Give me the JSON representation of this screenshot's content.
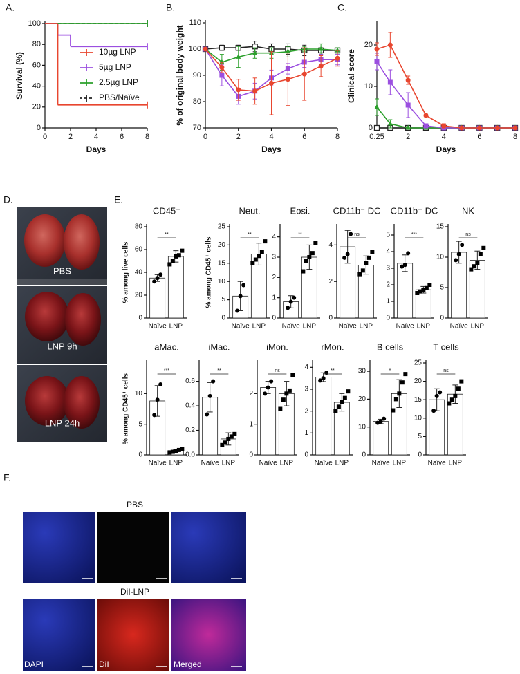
{
  "chart_data": [
    {
      "type": "step",
      "panel": "A.",
      "ylabel": "Survival (%)",
      "xlabel": "Days",
      "x": [
        0,
        1,
        2,
        8
      ],
      "xlim": [
        0,
        8
      ],
      "xticks": [
        0,
        2,
        4,
        6,
        8
      ],
      "ylim": [
        0,
        100
      ],
      "yticks": [
        0,
        20,
        40,
        60,
        80,
        100
      ],
      "legend": "upper right",
      "series": [
        {
          "name": "10µg LNP",
          "color": "#e8462f",
          "values": [
            100,
            22,
            22,
            22
          ]
        },
        {
          "name": "5µg LNP",
          "color": "#9b4fe0",
          "values": [
            100,
            89,
            78,
            78
          ]
        },
        {
          "name": "2.5µg LNP",
          "color": "#2ca02c",
          "values": [
            100,
            100,
            100,
            100
          ]
        },
        {
          "name": "PBS/Naïve",
          "color": "#222222",
          "dashed": true,
          "values": [
            100,
            100,
            100,
            100
          ]
        }
      ]
    },
    {
      "type": "line",
      "panel": "B.",
      "ylabel": "% of original body weight",
      "xlabel": "Days",
      "x": [
        0,
        1,
        2,
        3,
        4,
        5,
        6,
        7,
        8
      ],
      "xlim": [
        0,
        8
      ],
      "xticks": [
        0,
        2,
        4,
        6,
        8
      ],
      "ylim": [
        70,
        110
      ],
      "yticks": [
        70,
        80,
        90,
        100,
        110
      ],
      "series": [
        {
          "color": "#222222",
          "marker": "open-square",
          "values": [
            100,
            100.5,
            100.5,
            101,
            100,
            100,
            99.5,
            99.5,
            99.5
          ],
          "errors": [
            0,
            1,
            1,
            2,
            2,
            2,
            2,
            1,
            1
          ]
        },
        {
          "color": "#2ca02c",
          "marker": "triangle",
          "values": [
            100,
            95,
            97,
            98.5,
            98.5,
            99,
            100,
            100,
            99.5
          ],
          "errors": [
            0,
            3,
            4,
            2,
            2,
            2,
            1,
            2,
            1
          ]
        },
        {
          "color": "#9b4fe0",
          "marker": "square",
          "values": [
            100,
            90,
            82,
            84,
            89,
            92.5,
            95,
            96,
            96
          ],
          "errors": [
            0,
            4,
            3,
            3,
            3,
            2,
            2,
            2,
            2
          ]
        },
        {
          "color": "#e8462f",
          "marker": "circle",
          "values": [
            100,
            93,
            84.5,
            84,
            87,
            88.5,
            90.5,
            93.5,
            96.5
          ],
          "errors": [
            0,
            2,
            4,
            5,
            12,
            10,
            10,
            4,
            3
          ]
        }
      ]
    },
    {
      "type": "line",
      "panel": "C.",
      "ylabel": "Clinical score",
      "xlabel": "Days",
      "x": [
        0.25,
        1,
        2,
        3,
        4,
        5,
        6,
        7,
        8
      ],
      "xlim": [
        0.25,
        8
      ],
      "xticks": [
        0.25,
        2,
        4,
        6,
        8
      ],
      "ylim": [
        0,
        25
      ],
      "yticks": [
        0,
        10,
        20
      ],
      "series": [
        {
          "color": "#222222",
          "marker": "open-square",
          "values": [
            0,
            0,
            0,
            0,
            0,
            0,
            0,
            0,
            0
          ],
          "errors": [
            0,
            0,
            0,
            0,
            0,
            0,
            0,
            0,
            0
          ]
        },
        {
          "color": "#2ca02c",
          "marker": "triangle",
          "values": [
            5,
            1,
            0,
            0,
            0,
            0,
            0,
            0,
            0
          ],
          "errors": [
            2,
            1,
            0,
            0,
            0,
            0,
            0,
            0,
            0
          ]
        },
        {
          "color": "#9b4fe0",
          "marker": "square",
          "values": [
            16,
            11,
            5.5,
            0.5,
            0,
            0,
            0,
            0,
            0
          ],
          "errors": [
            2,
            3,
            3,
            0.5,
            0,
            0,
            0,
            0,
            0
          ]
        },
        {
          "color": "#e8462f",
          "marker": "circle",
          "values": [
            19,
            20,
            11.5,
            3,
            0.5,
            0,
            0,
            0,
            0
          ],
          "errors": [
            1.5,
            3,
            1,
            0.3,
            0.5,
            0,
            0,
            0,
            0
          ]
        }
      ]
    },
    {
      "type": "bar",
      "panel": "E.",
      "title": "CD45⁺",
      "ylabel": "% among live cells",
      "categories": [
        "Naïve",
        "LNP"
      ],
      "values": [
        35,
        54
      ],
      "errors": [
        3,
        5
      ],
      "points": [
        [
          32,
          35,
          38
        ],
        [
          47,
          50,
          54,
          55,
          59
        ]
      ],
      "significance": "**",
      "ylim": [
        0,
        80
      ],
      "yticks": [
        0,
        20,
        40,
        60,
        80
      ]
    },
    {
      "type": "bar",
      "title": "Neut.",
      "ylabel": "% among CD45⁺ cells",
      "categories": [
        "Naïve",
        "LNP"
      ],
      "values": [
        6,
        17.5
      ],
      "errors": [
        4,
        3
      ],
      "points": [
        [
          2,
          6,
          9
        ],
        [
          15,
          16,
          17,
          18,
          21
        ]
      ],
      "significance": "**",
      "ylim": [
        0,
        25
      ],
      "yticks": [
        0,
        5,
        10,
        15,
        20,
        25
      ]
    },
    {
      "type": "bar",
      "title": "Eosi.",
      "categories": [
        "Naïve",
        "LNP"
      ],
      "values": [
        0.8,
        3
      ],
      "errors": [
        0.3,
        0.6
      ],
      "points": [
        [
          0.5,
          0.8,
          1
        ],
        [
          2.3,
          2.8,
          3,
          3.2,
          3.7
        ]
      ],
      "significance": "**",
      "ylim": [
        0,
        4.5
      ],
      "yticks": [
        0,
        1,
        2,
        3,
        4
      ]
    },
    {
      "type": "bar",
      "title": "CD11b⁻ DC",
      "categories": [
        "Naïve",
        "LNP"
      ],
      "values": [
        3.9,
        2.9
      ],
      "errors": [
        0.9,
        0.5
      ],
      "points": [
        [
          3.3,
          3.5,
          4.6
        ],
        [
          2.4,
          2.6,
          3,
          3.3,
          3.6
        ]
      ],
      "significance": "ns",
      "ylim": [
        0,
        5
      ],
      "yticks": [
        0,
        2,
        4
      ]
    },
    {
      "type": "bar",
      "title": "CD11b⁺ DC",
      "categories": [
        "Naïve",
        "LNP"
      ],
      "values": [
        3.3,
        1.7
      ],
      "errors": [
        0.5,
        0.2
      ],
      "points": [
        [
          3.1,
          3.2,
          3.9
        ],
        [
          1.5,
          1.6,
          1.7,
          1.8,
          2
        ]
      ],
      "significance": "***",
      "ylim": [
        0,
        5.5
      ],
      "yticks": [
        0,
        1,
        2,
        3,
        4,
        5
      ]
    },
    {
      "type": "bar",
      "title": "NK",
      "categories": [
        "Naïve",
        "LNP"
      ],
      "values": [
        10.8,
        9.5
      ],
      "errors": [
        1.8,
        1.5
      ],
      "points": [
        [
          9.5,
          10.5,
          12
        ],
        [
          8,
          8.5,
          9,
          10.5,
          11.5
        ]
      ],
      "significance": "ns",
      "ylim": [
        0,
        15
      ],
      "yticks": [
        0,
        5,
        10,
        15
      ]
    },
    {
      "type": "bar",
      "title": "aMac.",
      "ylabel": "% among CD45⁺ cells",
      "categories": [
        "Naïve",
        "LNP"
      ],
      "values": [
        8.8,
        0.7
      ],
      "errors": [
        2.5,
        0.2
      ],
      "points": [
        [
          6.5,
          9,
          11.5
        ],
        [
          0.4,
          0.5,
          0.6,
          0.8,
          1
        ]
      ],
      "significance": "***",
      "ylim": [
        0,
        15
      ],
      "yticks": [
        0,
        5,
        10
      ]
    },
    {
      "type": "bar",
      "title": "iMac.",
      "categories": [
        "Naïve",
        "LNP"
      ],
      "values": [
        0.47,
        0.13
      ],
      "errors": [
        0.12,
        0.05
      ],
      "points": [
        [
          0.33,
          0.48,
          0.6
        ],
        [
          0.08,
          0.1,
          0.13,
          0.15,
          0.17
        ]
      ],
      "significance": "**",
      "ylim": [
        0,
        0.75
      ],
      "yticks": [
        {
          "value": 0,
          "label": "0.0"
        },
        0.2,
        0.4,
        0.6
      ]
    },
    {
      "type": "bar",
      "title": "iMon.",
      "categories": [
        "Naïve",
        "LNP"
      ],
      "values": [
        2.2,
        2
      ],
      "errors": [
        0.2,
        0.4
      ],
      "points": [
        [
          2,
          2.2,
          2.4
        ],
        [
          1.5,
          1.8,
          2,
          2.1,
          2.6
        ]
      ],
      "significance": "ns",
      "ylim": [
        0,
        3
      ],
      "yticks": [
        0,
        1,
        2
      ]
    },
    {
      "type": "bar",
      "title": "rMon.",
      "categories": [
        "Naïve",
        "LNP"
      ],
      "values": [
        3.55,
        2.4
      ],
      "errors": [
        0.2,
        0.4
      ],
      "points": [
        [
          3.4,
          3.5,
          3.75
        ],
        [
          2,
          2.2,
          2.4,
          2.6,
          2.9
        ]
      ],
      "significance": "**",
      "ylim": [
        0,
        4.2
      ],
      "yticks": [
        0,
        1,
        2,
        3,
        4
      ]
    },
    {
      "type": "bar",
      "title": "B cells",
      "categories": [
        "Naïve",
        "LNP"
      ],
      "values": [
        12,
        22
      ],
      "errors": [
        0.8,
        5
      ],
      "points": [
        [
          11.5,
          12,
          13
        ],
        [
          16,
          20,
          22,
          26,
          29
        ]
      ],
      "significance": "*",
      "ylim": [
        0,
        33
      ],
      "yticks": [
        0,
        10,
        20,
        30
      ]
    },
    {
      "type": "bar",
      "title": "T cells",
      "categories": [
        "Naïve",
        "LNP"
      ],
      "values": [
        15,
        16.5
      ],
      "errors": [
        3,
        2.5
      ],
      "points": [
        [
          12,
          16,
          17
        ],
        [
          14,
          15,
          16,
          18,
          20
        ]
      ],
      "significance": "ns",
      "ylim": [
        0,
        25
      ],
      "yticks": [
        0,
        5,
        10,
        15,
        20,
        25
      ]
    }
  ],
  "images": {
    "lungs": {
      "panel": "D.",
      "captions": [
        "PBS",
        "LNP 9h",
        "LNP 24h"
      ]
    },
    "microscopy": {
      "panel": "F.",
      "rows": [
        "PBS",
        "DiI-LNP"
      ],
      "channels": [
        "DAPI",
        "DiI",
        "Merged"
      ]
    }
  }
}
